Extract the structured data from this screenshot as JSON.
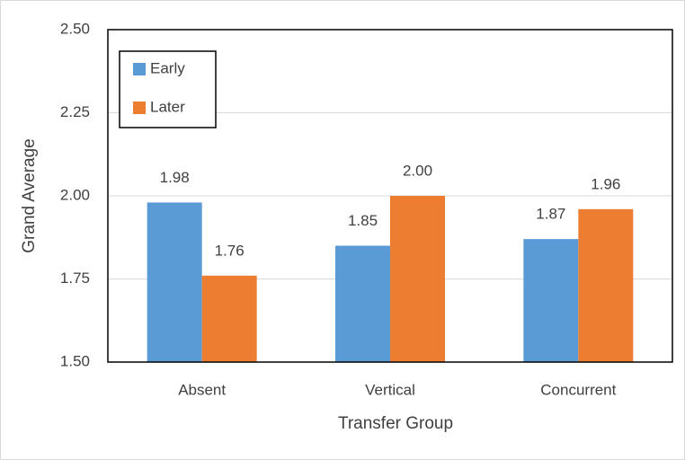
{
  "chart_data": {
    "type": "bar",
    "x_label": "Transfer Group",
    "y_label": "Grand Average",
    "categories": [
      "Absent",
      "Vertical",
      "Concurrent"
    ],
    "series": [
      {
        "name": "Early",
        "color": "#5b9bd5",
        "values": [
          1.98,
          1.85,
          1.87
        ],
        "value_labels": [
          "1.98",
          "1.85",
          "1.87"
        ]
      },
      {
        "name": "Later",
        "color": "#ed7d31",
        "values": [
          1.76,
          2.0,
          1.96
        ],
        "value_labels": [
          "1.76",
          "2.00",
          "1.96"
        ]
      }
    ],
    "ylim": [
      1.5,
      2.5
    ],
    "yticks": [
      {
        "value": 1.5,
        "label": "1.50"
      },
      {
        "value": 1.75,
        "label": "1.75"
      },
      {
        "value": 2.0,
        "label": "2.00"
      },
      {
        "value": 2.25,
        "label": "2.25"
      },
      {
        "value": 2.5,
        "label": "2.50"
      }
    ],
    "grid": true,
    "legend": "upper-left"
  }
}
